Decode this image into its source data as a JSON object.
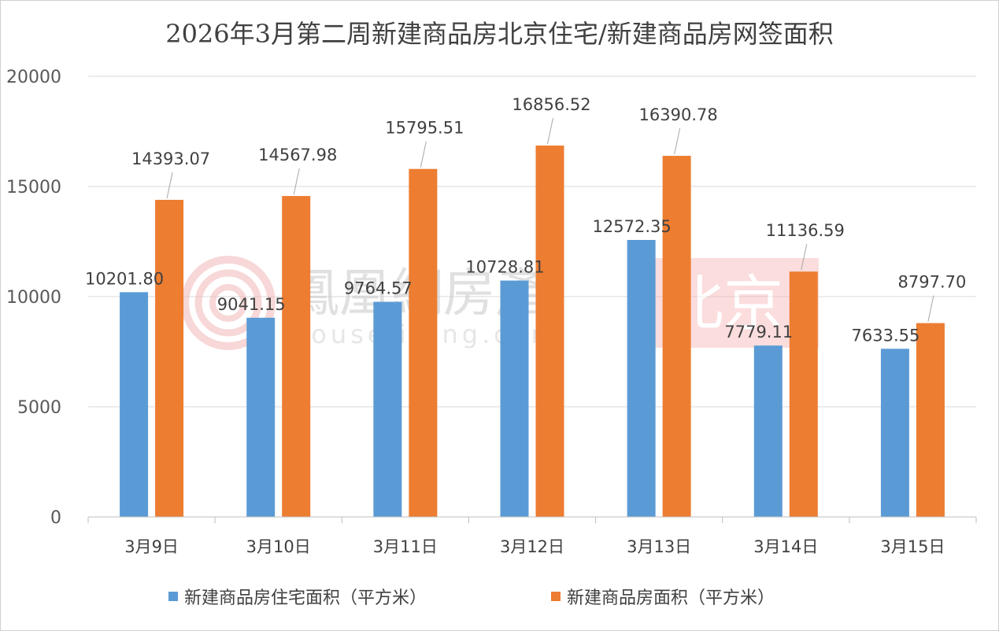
{
  "chart_data": {
    "type": "bar",
    "title": "2026年3月第二周新建商品房北京住宅/新建商品房网签面积",
    "categories": [
      "3月9日",
      "3月10日",
      "3月11日",
      "3月12日",
      "3月13日",
      "3月14日",
      "3月15日"
    ],
    "series": [
      {
        "name": "新建商品房住宅面积（平方米）",
        "color": "#5b9bd5",
        "values": [
          10201.8,
          9041.15,
          9764.57,
          10728.81,
          12572.35,
          7779.11,
          7633.55
        ],
        "labels": [
          "10201.80",
          "9041.15",
          "9764.57",
          "10728.81",
          "12572.35",
          "7779.11",
          "7633.55"
        ]
      },
      {
        "name": "新建商品房面积（平方米）",
        "color": "#ed7d31",
        "values": [
          14393.07,
          14567.98,
          15795.51,
          16856.52,
          16390.78,
          11136.59,
          8797.7
        ],
        "labels": [
          "14393.07",
          "14567.98",
          "15795.51",
          "16856.52",
          "16390.78",
          "11136.59",
          "8797.70"
        ]
      }
    ],
    "ylim": [
      0,
      20000
    ],
    "yticks": [
      "0",
      "5000",
      "10000",
      "15000",
      "20000"
    ],
    "grid": true,
    "legend_position": "bottom"
  },
  "watermark": {
    "brand": "鳳凰網房產",
    "url": "house.ifeng.com",
    "city": "北京"
  }
}
